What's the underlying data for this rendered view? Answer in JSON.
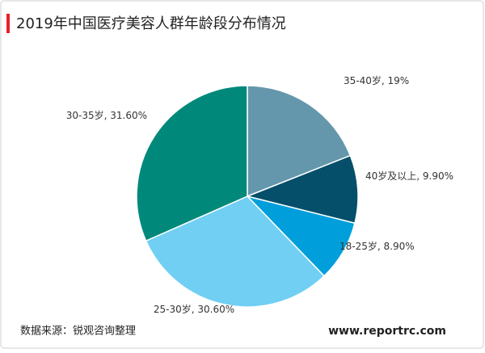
{
  "header": {
    "title": "2019年中国医疗美容人群年龄段分布情况"
  },
  "chart_data": {
    "type": "pie",
    "categories": [
      "35-40岁",
      "40岁及以上",
      "18-25岁",
      "25-30岁",
      "30-35岁"
    ],
    "values": [
      19,
      9.9,
      8.9,
      30.6,
      31.6
    ],
    "value_labels": [
      "19%",
      "9.90%",
      "8.90%",
      "30.60%",
      "31.60%"
    ],
    "label_separator": ", ",
    "colors": [
      "#6497ab",
      "#054f6b",
      "#009fdb",
      "#70cff3",
      "#00897b"
    ]
  },
  "footer": {
    "source": "数据来源：锐观咨询整理",
    "website": "www.reportrc.com"
  }
}
